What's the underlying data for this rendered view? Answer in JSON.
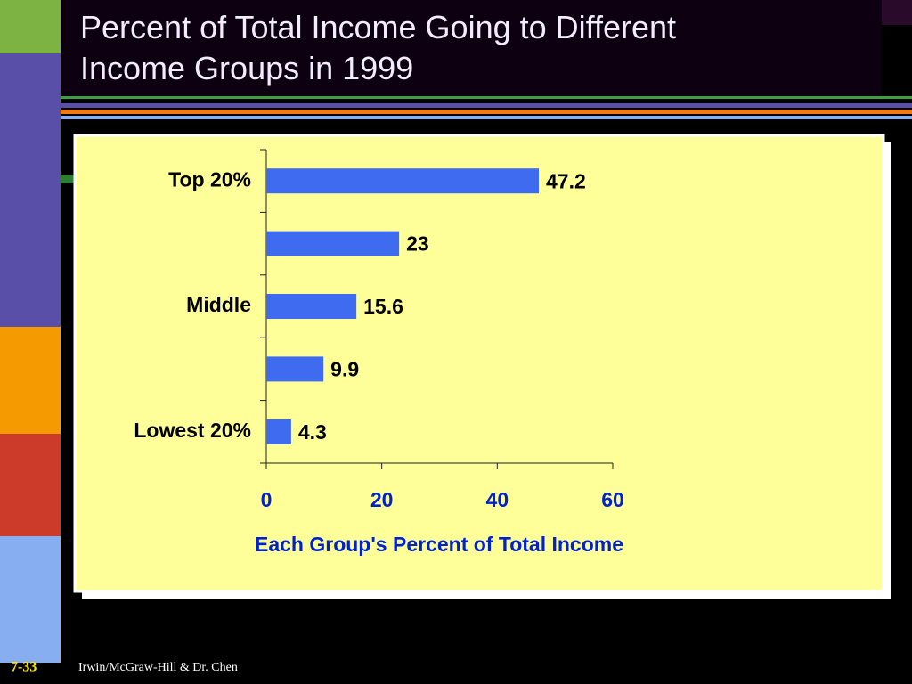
{
  "chart_data": {
    "type": "hbar",
    "title": "Percent of Total Income Going to Different Income Groups in 1999",
    "categories": [
      "Top 20%",
      null,
      "Middle",
      null,
      "Lowest 20%"
    ],
    "values": [
      47.2,
      23,
      15.6,
      9.9,
      4.3
    ],
    "color": "#3f6bf0",
    "xlabel": "Each Group's Percent of Total Income",
    "xlim": [
      0,
      60
    ],
    "xticks": [
      0,
      20,
      40,
      60
    ]
  },
  "footer": {
    "slide_number": "7-33",
    "credit": "Irwin/McGraw-Hill & Dr. Chen"
  }
}
